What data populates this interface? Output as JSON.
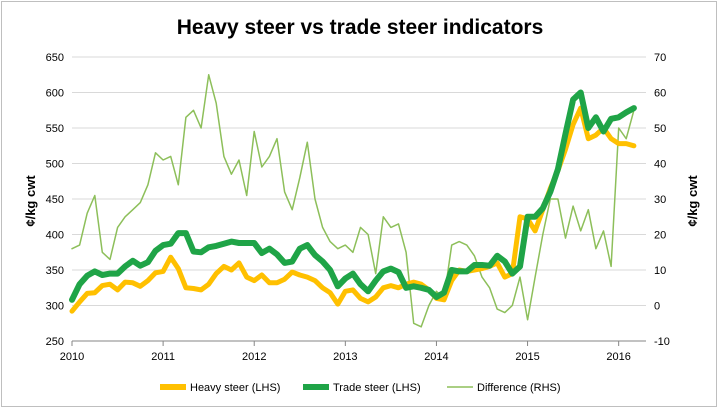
{
  "chart_data": {
    "type": "line",
    "title": "Heavy steer vs trade steer indicators",
    "ylabel_left": "¢/kg cwt",
    "ylabel_right": "¢/kg cwt",
    "xlim": [
      2010,
      2016.3
    ],
    "ylim_left": [
      250,
      650
    ],
    "ylim_right": [
      -10,
      70
    ],
    "x_ticks": [
      "2010",
      "2011",
      "2012",
      "2013",
      "2014",
      "2015",
      "2016"
    ],
    "y_ticks_left": [
      "250",
      "300",
      "350",
      "400",
      "450",
      "500",
      "550",
      "600",
      "650"
    ],
    "y_ticks_right": [
      "-10",
      "0",
      "10",
      "20",
      "30",
      "40",
      "50",
      "60",
      "70"
    ],
    "grid": "horizontal",
    "legend_position": "bottom",
    "colors": {
      "heavy": "#FFC000",
      "trade": "#1FA447",
      "difference": "#8DBF5A",
      "grid": "#d9d9d9"
    },
    "series": [
      {
        "name": "Heavy steer (LHS)",
        "axis": "left",
        "x": [
          2010.0,
          2010.083,
          2010.167,
          2010.25,
          2010.333,
          2010.417,
          2010.5,
          2010.583,
          2010.667,
          2010.75,
          2010.833,
          2010.917,
          2011.0,
          2011.083,
          2011.167,
          2011.25,
          2011.333,
          2011.417,
          2011.5,
          2011.583,
          2011.667,
          2011.75,
          2011.833,
          2011.917,
          2012.0,
          2012.083,
          2012.167,
          2012.25,
          2012.333,
          2012.417,
          2012.5,
          2012.583,
          2012.667,
          2012.75,
          2012.833,
          2012.917,
          2013.0,
          2013.083,
          2013.167,
          2013.25,
          2013.333,
          2013.417,
          2013.5,
          2013.583,
          2013.667,
          2013.75,
          2013.833,
          2013.917,
          2014.0,
          2014.083,
          2014.167,
          2014.25,
          2014.333,
          2014.417,
          2014.5,
          2014.583,
          2014.667,
          2014.75,
          2014.833,
          2014.917,
          2015.0,
          2015.083,
          2015.167,
          2015.25,
          2015.333,
          2015.417,
          2015.5,
          2015.583,
          2015.667,
          2015.75,
          2015.833,
          2015.917,
          2016.0,
          2016.083,
          2016.167
        ],
        "values": [
          292,
          305,
          317,
          318,
          328,
          330,
          322,
          333,
          332,
          327,
          335,
          346,
          348,
          368,
          352,
          325,
          324,
          322,
          330,
          345,
          355,
          350,
          360,
          340,
          335,
          343,
          332,
          332,
          337,
          347,
          343,
          340,
          335,
          325,
          318,
          302,
          320,
          322,
          310,
          305,
          312,
          325,
          328,
          325,
          330,
          333,
          330,
          322,
          310,
          308,
          335,
          350,
          348,
          350,
          352,
          355,
          360,
          340,
          345,
          425,
          422,
          405,
          435,
          465,
          490,
          520,
          555,
          578,
          535,
          540,
          550,
          535,
          528,
          528,
          525
        ]
      },
      {
        "name": "Trade steer (LHS)",
        "axis": "left",
        "x": [
          2010.0,
          2010.083,
          2010.167,
          2010.25,
          2010.333,
          2010.417,
          2010.5,
          2010.583,
          2010.667,
          2010.75,
          2010.833,
          2010.917,
          2011.0,
          2011.083,
          2011.167,
          2011.25,
          2011.333,
          2011.417,
          2011.5,
          2011.583,
          2011.667,
          2011.75,
          2011.833,
          2011.917,
          2012.0,
          2012.083,
          2012.167,
          2012.25,
          2012.333,
          2012.417,
          2012.5,
          2012.583,
          2012.667,
          2012.75,
          2012.833,
          2012.917,
          2013.0,
          2013.083,
          2013.167,
          2013.25,
          2013.333,
          2013.417,
          2013.5,
          2013.583,
          2013.667,
          2013.75,
          2013.833,
          2013.917,
          2014.0,
          2014.083,
          2014.167,
          2014.25,
          2014.333,
          2014.417,
          2014.5,
          2014.583,
          2014.667,
          2014.75,
          2014.833,
          2014.917,
          2015.0,
          2015.083,
          2015.167,
          2015.25,
          2015.333,
          2015.417,
          2015.5,
          2015.583,
          2015.667,
          2015.75,
          2015.833,
          2015.917,
          2016.0,
          2016.083,
          2016.167
        ],
        "values": [
          308,
          330,
          342,
          348,
          343,
          345,
          345,
          355,
          363,
          356,
          361,
          377,
          385,
          387,
          402,
          402,
          376,
          375,
          382,
          384,
          387,
          390,
          388,
          388,
          388,
          374,
          380,
          372,
          360,
          362,
          380,
          385,
          371,
          362,
          350,
          327,
          338,
          345,
          330,
          320,
          335,
          348,
          352,
          347,
          325,
          327,
          325,
          322,
          312,
          318,
          350,
          348,
          348,
          357,
          357,
          356,
          370,
          362,
          345,
          355,
          425,
          425,
          437,
          460,
          492,
          542,
          590,
          600,
          550,
          565,
          545,
          563,
          565,
          572,
          578
        ]
      },
      {
        "name": "Difference (RHS)",
        "axis": "right",
        "x": [
          2010.0,
          2010.083,
          2010.167,
          2010.25,
          2010.333,
          2010.417,
          2010.5,
          2010.583,
          2010.667,
          2010.75,
          2010.833,
          2010.917,
          2011.0,
          2011.083,
          2011.167,
          2011.25,
          2011.333,
          2011.417,
          2011.5,
          2011.583,
          2011.667,
          2011.75,
          2011.833,
          2011.917,
          2012.0,
          2012.083,
          2012.167,
          2012.25,
          2012.333,
          2012.417,
          2012.5,
          2012.583,
          2012.667,
          2012.75,
          2012.833,
          2012.917,
          2013.0,
          2013.083,
          2013.167,
          2013.25,
          2013.333,
          2013.417,
          2013.5,
          2013.583,
          2013.667,
          2013.75,
          2013.833,
          2013.917,
          2014.0,
          2014.083,
          2014.167,
          2014.25,
          2014.333,
          2014.417,
          2014.5,
          2014.583,
          2014.667,
          2014.75,
          2014.833,
          2014.917,
          2015.0,
          2015.083,
          2015.167,
          2015.25,
          2015.333,
          2015.417,
          2015.5,
          2015.583,
          2015.667,
          2015.75,
          2015.833,
          2015.917,
          2016.0,
          2016.083,
          2016.167
        ],
        "values": [
          16,
          17,
          26,
          31,
          15,
          13,
          22,
          25,
          27,
          29,
          34,
          43,
          41,
          42,
          34,
          53,
          55,
          50,
          65,
          57,
          42,
          37,
          41,
          31,
          49,
          39,
          42,
          47,
          32,
          27,
          36,
          46,
          30,
          22,
          18,
          16,
          17,
          15,
          22,
          20,
          9,
          25,
          22,
          23,
          15,
          -5,
          -6,
          0,
          4,
          2,
          17,
          18,
          17,
          14,
          8,
          5,
          -1,
          -2,
          0,
          8,
          -4,
          8,
          20,
          30,
          30,
          19,
          28,
          21,
          27,
          16,
          21,
          11,
          50,
          47,
          55
        ]
      }
    ]
  }
}
